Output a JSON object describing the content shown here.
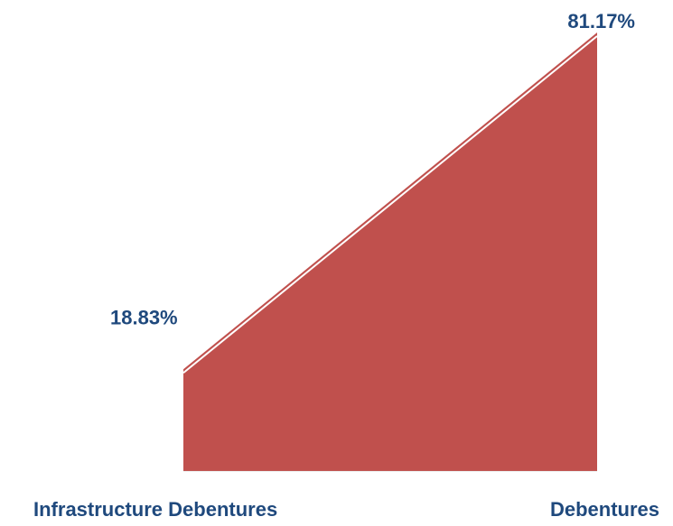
{
  "chart_data": {
    "type": "area",
    "categories": [
      "Infrastructure Debentures",
      "Debentures"
    ],
    "values": [
      18.83,
      81.17
    ],
    "data_labels": [
      "18.83%",
      "81.17%"
    ],
    "ylim": [
      0,
      81.17
    ],
    "grid": false,
    "legend": "none",
    "colors": {
      "fill": "#C0504D",
      "highlight": "#ffffff",
      "label": "#1F497D",
      "baseline": "#D9D9D9"
    }
  }
}
